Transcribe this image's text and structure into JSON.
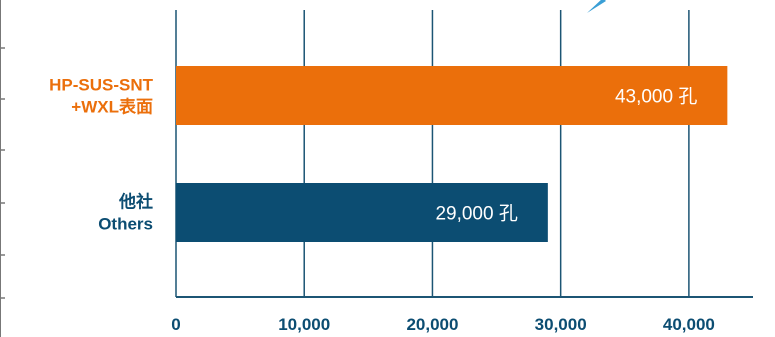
{
  "chart_data": {
    "type": "bar",
    "orientation": "horizontal",
    "categories": [
      [
        "HP-SUS-SNT",
        "+WXL表面"
      ],
      [
        "他社",
        "Others"
      ]
    ],
    "values": [
      43000,
      29000
    ],
    "data_labels": [
      "43,000 孔",
      "29,000 孔"
    ],
    "bar_colors": [
      "#eb6f0b",
      "#0c4d72"
    ],
    "category_label_colors": [
      "#eb6f0b",
      "#0c4d72"
    ],
    "xlim": [
      0,
      45000
    ],
    "x_ticks": [
      0,
      10000,
      20000,
      30000,
      40000
    ],
    "x_tick_labels": [
      "0",
      "10,000",
      "20,000",
      "30,000",
      "40,000"
    ],
    "grid": true,
    "axis_color": "#1c5574",
    "tick_label_color": "#0c4d72",
    "title": "",
    "xlabel": "",
    "ylabel": ""
  }
}
